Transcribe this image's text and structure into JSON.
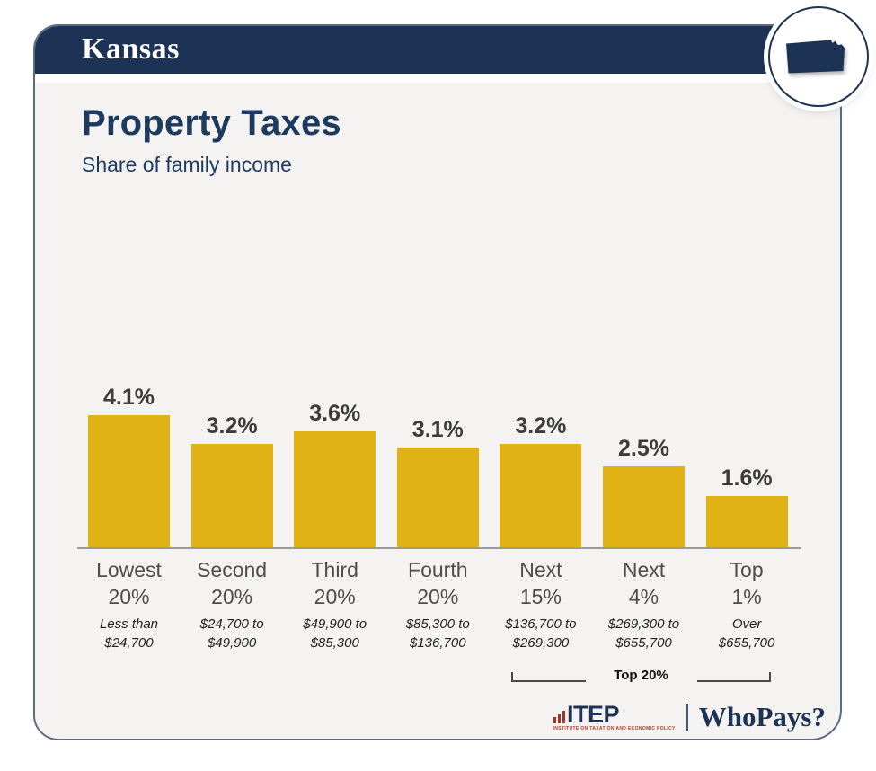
{
  "header": {
    "state": "Kansas"
  },
  "title": "Property Taxes",
  "subtitle": "Share of family income",
  "chart_data": {
    "type": "bar",
    "title": "Property Taxes",
    "subtitle": "Share of family income",
    "categories": [
      "Lowest 20%",
      "Second 20%",
      "Third 20%",
      "Fourth 20%",
      "Next 15%",
      "Next 4%",
      "Top 1%"
    ],
    "category_lines": [
      [
        "Lowest",
        "20%"
      ],
      [
        "Second",
        "20%"
      ],
      [
        "Third",
        "20%"
      ],
      [
        "Fourth",
        "20%"
      ],
      [
        "Next",
        "15%"
      ],
      [
        "Next",
        "4%"
      ],
      [
        "Top",
        "1%"
      ]
    ],
    "values": [
      4.1,
      3.2,
      3.6,
      3.1,
      3.2,
      2.5,
      1.6
    ],
    "value_labels": [
      "4.1%",
      "3.2%",
      "3.6%",
      "3.1%",
      "3.2%",
      "2.5%",
      "1.6%"
    ],
    "income_ranges": [
      "Less than $24,700",
      "$24,700 to $49,900",
      "$49,900 to $85,300",
      "$85,300 to $136,700",
      "$136,700 to $269,300",
      "$269,300 to $655,700",
      "Over $655,700"
    ],
    "income_range_lines": [
      [
        "Less than",
        "$24,700"
      ],
      [
        "$24,700 to",
        "$49,900"
      ],
      [
        "$49,900 to",
        "$85,300"
      ],
      [
        "$85,300 to",
        "$136,700"
      ],
      [
        "$136,700 to",
        "$269,300"
      ],
      [
        "$269,300 to",
        "$655,700"
      ],
      [
        "Over",
        "$655,700"
      ]
    ],
    "annotation": "Top 20%",
    "annotation_span_categories": [
      "Next 15%",
      "Next 4%",
      "Top 1%"
    ],
    "xlabel": "",
    "ylabel": "Share of family income (%)",
    "ylim": [
      0,
      4.5
    ],
    "grid": false,
    "legend": "none",
    "bar_color": "#e1b216"
  },
  "bracket": {
    "label": "Top 20%"
  },
  "footer": {
    "itep": "ITEP",
    "itep_sub": "INSTITUTE ON TAXATION AND ECONOMIC POLICY",
    "whopays": "WhoPays?"
  },
  "colors": {
    "navy": "#1c3356",
    "title_navy": "#1d3a5f",
    "bar_gold": "#e1b216",
    "body_bg": "#f4f3f1",
    "card_border": "#5c6b7f",
    "value_text": "#3b3b3b",
    "category_text": "#4d4d4d",
    "axis": "#9b9b9b",
    "itep_red": "#a93226"
  }
}
